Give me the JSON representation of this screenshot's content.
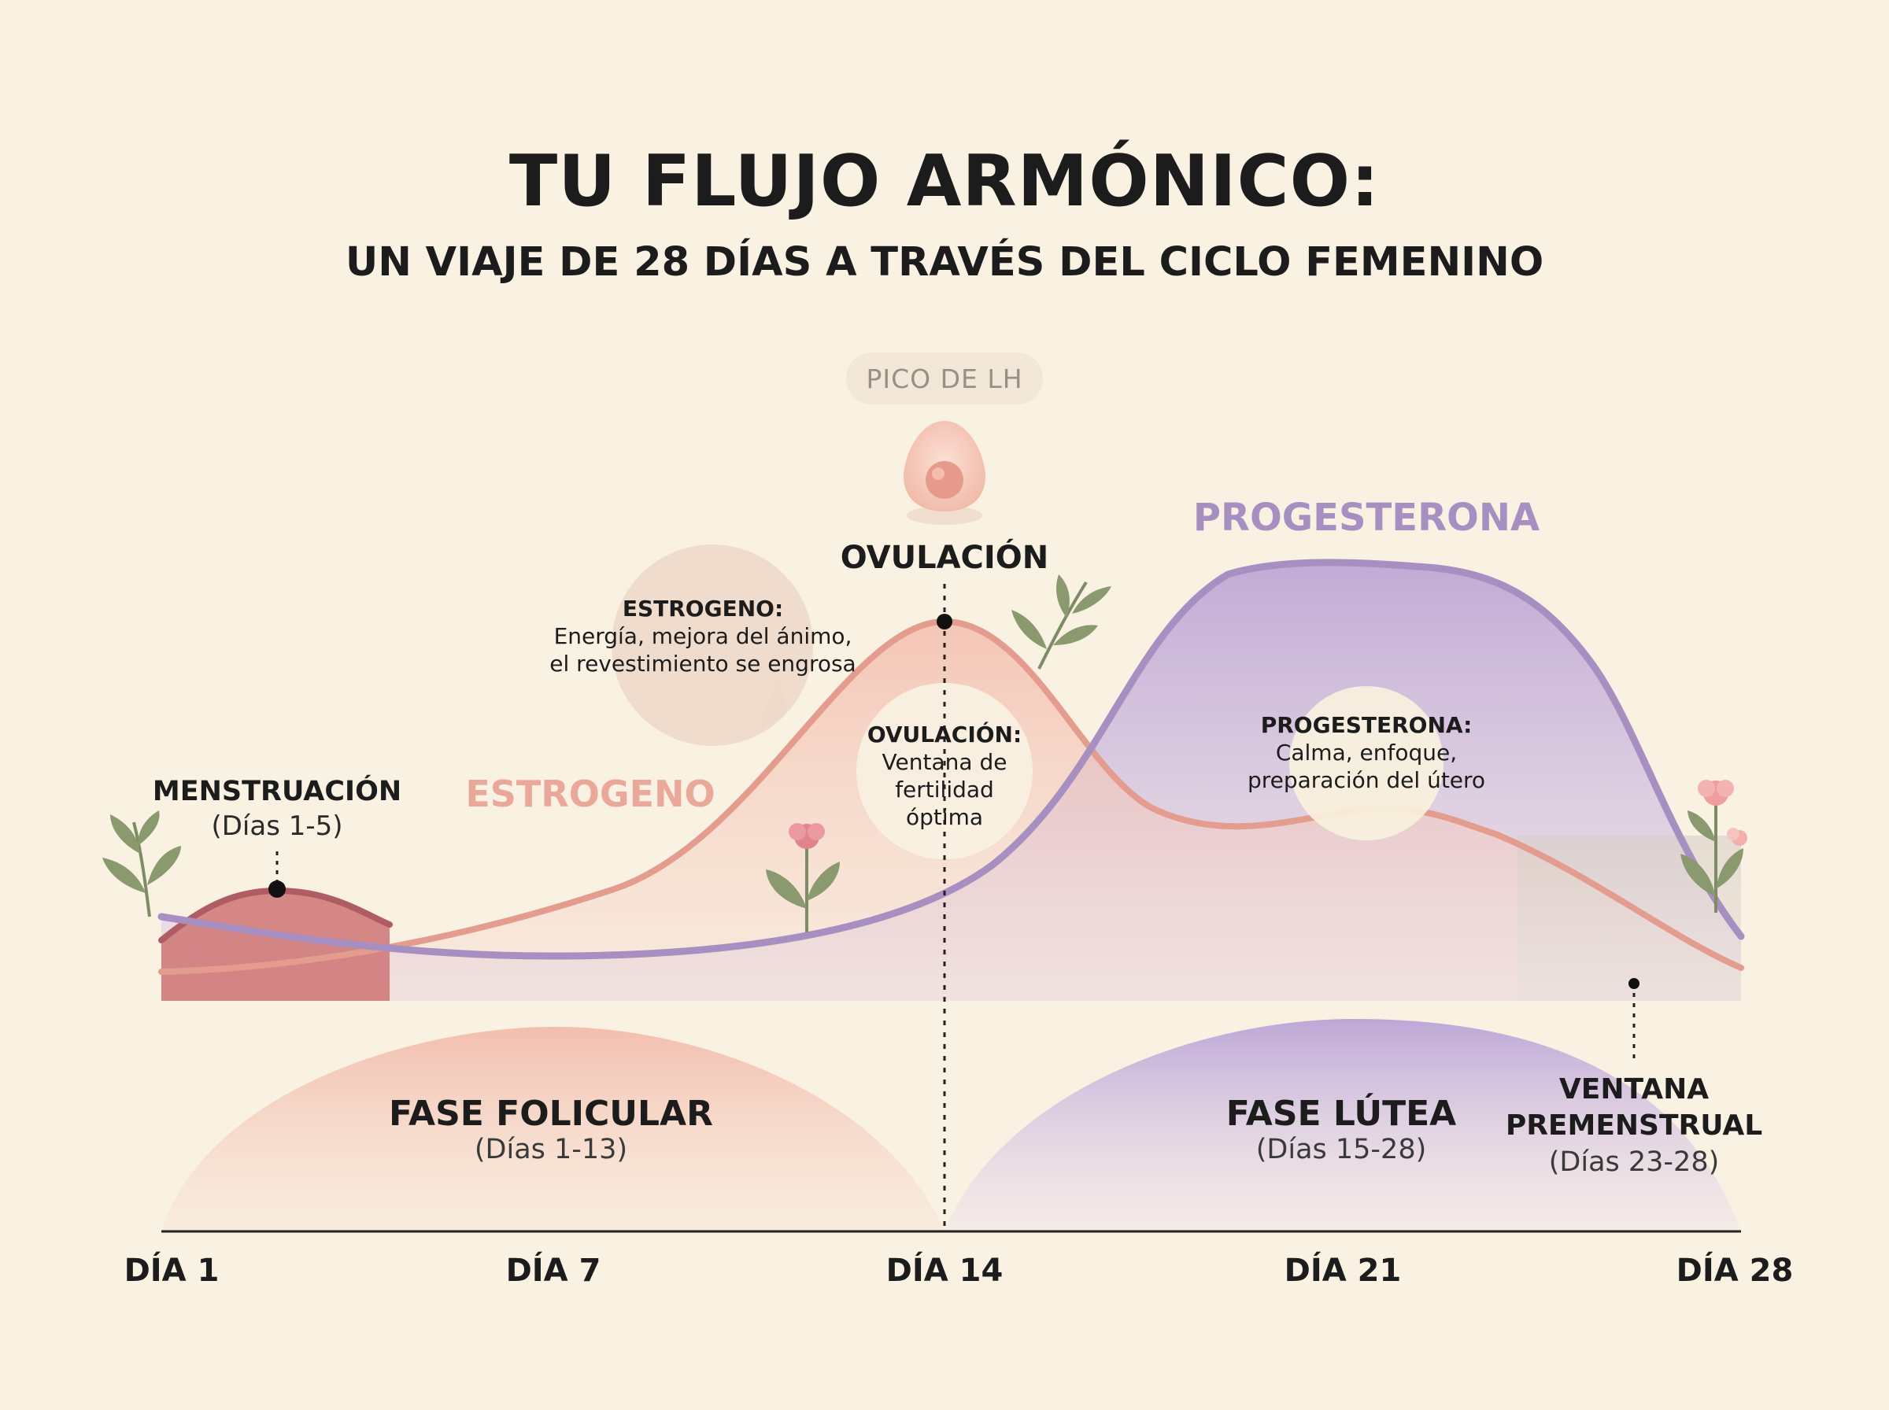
{
  "header": {
    "title": "TU FLUJO ARMÓNICO:",
    "subtitle": "UN VIAJE DE 28 DÍAS A TRAVÉS DEL CICLO FEMENINO"
  },
  "lh_peak": {
    "badge": "PICO DE LH",
    "ovulation_label": "OVULACIÓN"
  },
  "hormones": {
    "estrogen_label": "ESTROGENO",
    "progesterone_label": "PROGESTERONA"
  },
  "callouts": {
    "menstruation": {
      "title": "MENSTRUACIÓN",
      "days": "(Días 1-5)"
    },
    "estrogen": {
      "title": "ESTROGENO:",
      "line1": "Energía, mejora del ánimo,",
      "line2": "el revestimiento se engrosa"
    },
    "ovulation": {
      "title": "OVULACIÓN:",
      "line1": "Ventana de",
      "line2": "fertilidad",
      "line3": "óptima"
    },
    "progesterone": {
      "title": "PROGESTERONA:",
      "line1": "Calma, enfoque,",
      "line2": "preparación del útero"
    }
  },
  "phases": {
    "follicular": {
      "title": "FASE FOLICULAR",
      "days": "(Días 1-13)"
    },
    "luteal": {
      "title": "FASE LÚTEA",
      "days": "(Días 15-28)"
    },
    "premenstrual": {
      "title_line1": "VENTANA",
      "title_line2": "PREMENSTRUAL",
      "days": "(Días 23-28)"
    }
  },
  "axis": {
    "ticks": [
      "DÍA 1",
      "DÍA 7",
      "DÍA 14",
      "DÍA 21",
      "DÍA 28"
    ]
  },
  "colors": {
    "background": "#f9f1e2",
    "estrogen": "#e39c8e",
    "progesterone": "#a88fc2",
    "menstruation": "#cf7474",
    "text": "#1c1c1c"
  },
  "icons": {
    "egg": "egg-icon",
    "leaves": "leaf-sprig-icon",
    "flowers": "flower-icon"
  }
}
